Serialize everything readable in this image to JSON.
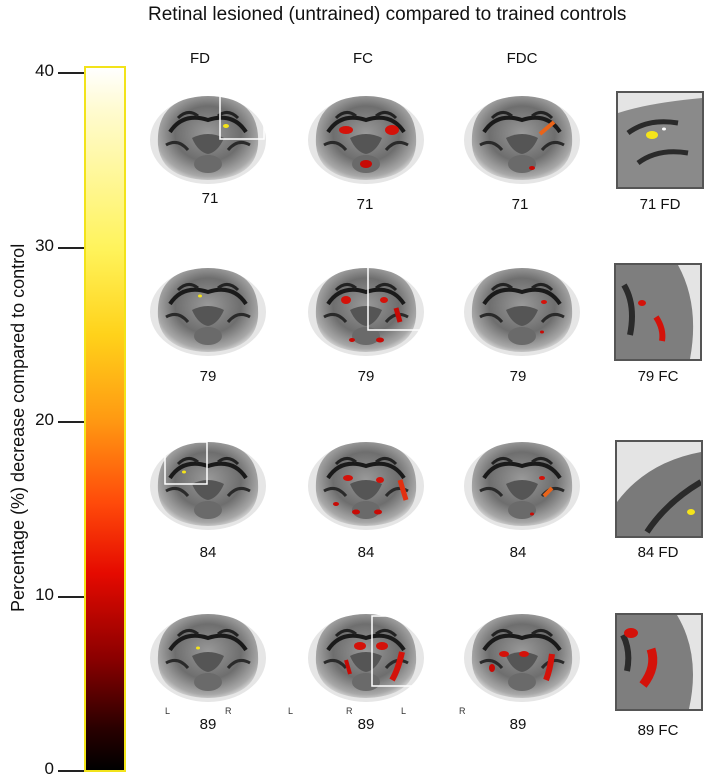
{
  "title": "Retinal lesioned (untrained) compared to trained controls",
  "columns": [
    "FD",
    "FC",
    "FDC"
  ],
  "colorbar": {
    "axis_label": "Percentage (%) decrease compared to control",
    "ticks": [
      "40",
      "30",
      "20",
      "10",
      "0"
    ],
    "colors": [
      "#ffffff",
      "#fff35a",
      "#ff9a12",
      "#e50a00",
      "#000000"
    ]
  },
  "rows": [
    {
      "label": "71",
      "zoom_label": "71 FD"
    },
    {
      "label": "79",
      "zoom_label": "79 FC"
    },
    {
      "label": "84",
      "zoom_label": "84 FD"
    },
    {
      "label": "89",
      "zoom_label": "89 FC"
    }
  ],
  "orientation": {
    "left": "L",
    "right": "R"
  }
}
